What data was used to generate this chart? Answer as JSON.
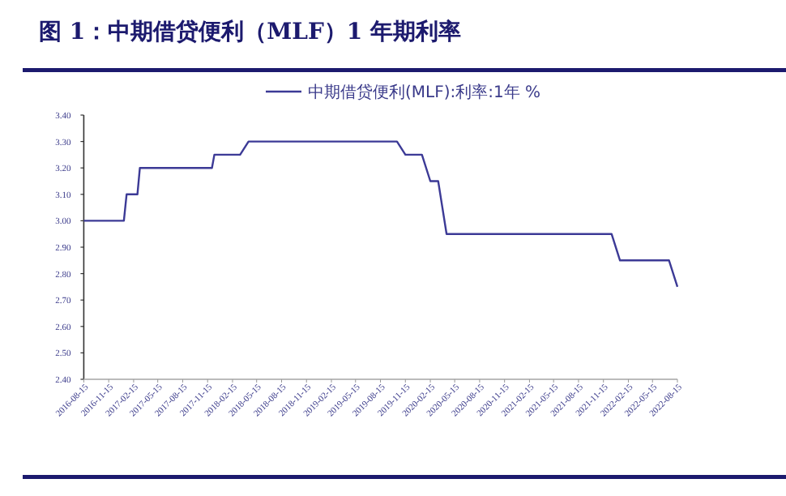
{
  "chart_data": {
    "type": "line",
    "title": "图 1：中期借贷便利（MLF）1 年期利率",
    "series": [
      {
        "name": "中期借贷便利(MLF):利率:1年 %",
        "color": "#3c3a96",
        "x": [
          "2016-08-15",
          "2017-01-10",
          "2017-01-20",
          "2017-03-01",
          "2017-03-10",
          "2017-12-01",
          "2017-12-10",
          "2018-03-15",
          "2018-04-15",
          "2019-10-15",
          "2019-11-15",
          "2020-01-15",
          "2020-02-15",
          "2020-03-15",
          "2020-04-15",
          "2021-12-15",
          "2022-01-15",
          "2022-07-15",
          "2022-08-15"
        ],
        "values": [
          3.0,
          3.0,
          3.1,
          3.1,
          3.2,
          3.2,
          3.25,
          3.25,
          3.3,
          3.3,
          3.25,
          3.25,
          3.15,
          3.15,
          2.95,
          2.95,
          2.85,
          2.85,
          2.75
        ]
      }
    ],
    "xlim": [
      "2016-08-15",
      "2022-08-15"
    ],
    "xticks": [
      "2016-08-15",
      "2016-11-15",
      "2017-02-15",
      "2017-05-15",
      "2017-08-15",
      "2017-11-15",
      "2018-02-15",
      "2018-05-15",
      "2018-08-15",
      "2018-11-15",
      "2019-02-15",
      "2019-05-15",
      "2019-08-15",
      "2019-11-15",
      "2020-02-15",
      "2020-05-15",
      "2020-08-15",
      "2020-11-15",
      "2021-02-15",
      "2021-05-15",
      "2021-08-15",
      "2021-11-15",
      "2022-02-15",
      "2022-05-15",
      "2022-08-15"
    ],
    "ylim": [
      2.4,
      3.4
    ],
    "yticks": [
      {
        "value": 2.4,
        "label": "2.40"
      },
      {
        "value": 2.5,
        "label": "2.50"
      },
      {
        "value": 2.6,
        "label": "2.60"
      },
      {
        "value": 2.7,
        "label": "2.70"
      },
      {
        "value": 2.8,
        "label": "2.80"
      },
      {
        "value": 2.9,
        "label": "2.90"
      },
      {
        "value": 3.0,
        "label": "3.00"
      },
      {
        "value": 3.1,
        "label": "3.10"
      },
      {
        "value": 3.2,
        "label": "3.20"
      },
      {
        "value": 3.3,
        "label": "3.30"
      },
      {
        "value": 3.4,
        "label": "3.40"
      }
    ],
    "grid": false,
    "legend": "top",
    "marker": "none",
    "line_style": "solid"
  }
}
